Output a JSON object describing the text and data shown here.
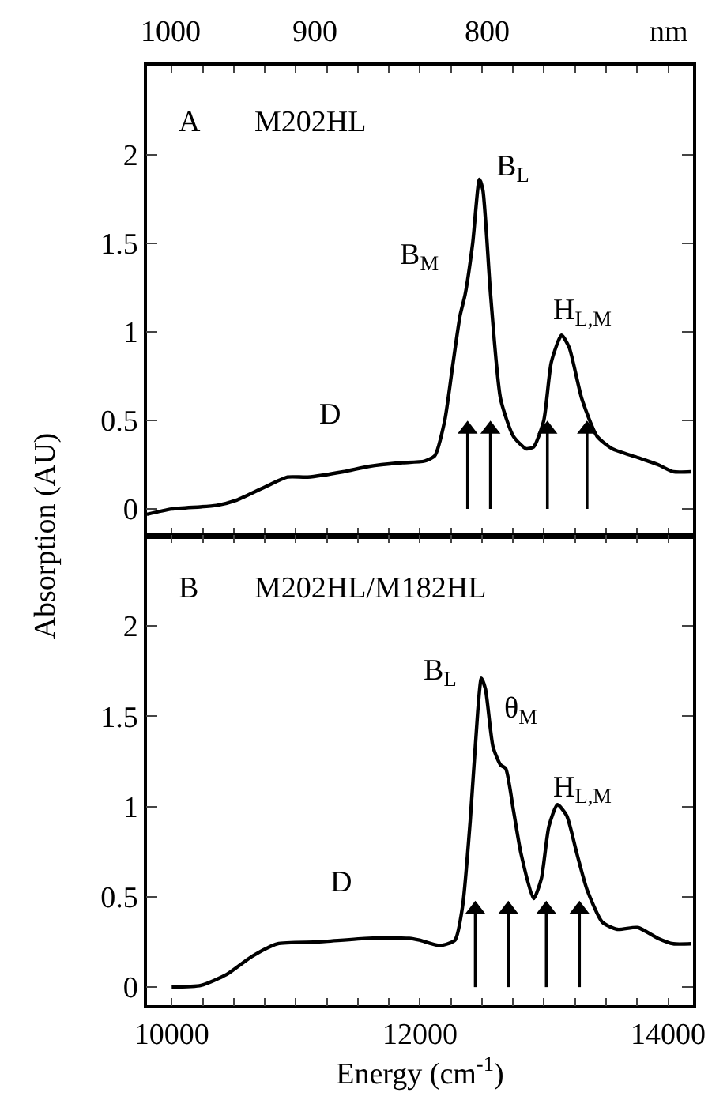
{
  "chart_data": [
    {
      "type": "line",
      "xlim": [
        9800,
        14200
      ],
      "ylim": [
        -0.15,
        2.5
      ],
      "yticks": [
        0,
        0.5,
        1,
        1.5,
        2
      ],
      "tick_labels": "y",
      "marker": "none",
      "line_style": "solid",
      "xticks": [
        {
          "value": 10000,
          "label": null
        },
        {
          "value": 10250,
          "label": null
        },
        {
          "value": 10500,
          "label": null
        },
        {
          "value": 10750,
          "label": null
        },
        {
          "value": 11000,
          "label": null
        },
        {
          "value": 11250,
          "label": null
        },
        {
          "value": 11500,
          "label": null
        },
        {
          "value": 11750,
          "label": null
        },
        {
          "value": 12000,
          "label": null
        },
        {
          "value": 12250,
          "label": null
        },
        {
          "value": 12500,
          "label": null
        },
        {
          "value": 12750,
          "label": null
        },
        {
          "value": 13000,
          "label": null
        },
        {
          "value": 13250,
          "label": null
        },
        {
          "value": 13500,
          "label": null
        },
        {
          "value": 13750,
          "label": null
        },
        {
          "value": 14000,
          "label": null
        }
      ],
      "ylabel": "Absorption (AU)",
      "x": [
        9800,
        10000,
        10360,
        10524,
        10769,
        10933,
        11096,
        11382,
        11587,
        11832,
        12037,
        12119,
        12200,
        12262,
        12323,
        12364,
        12425,
        12479,
        12507,
        12569,
        12650,
        12753,
        12855,
        12916,
        12998,
        13059,
        13141,
        13203,
        13305,
        13427,
        13550,
        13754,
        13918,
        14041,
        14184
      ],
      "series": [
        {
          "color": "#000000",
          "values": [
            -0.03,
            0.0,
            0.02,
            0.05,
            0.13,
            0.18,
            0.18,
            0.21,
            0.24,
            0.26,
            0.27,
            0.3,
            0.5,
            0.8,
            1.09,
            1.21,
            1.5,
            1.86,
            1.8,
            1.21,
            0.62,
            0.41,
            0.34,
            0.35,
            0.5,
            0.83,
            0.98,
            0.91,
            0.62,
            0.41,
            0.34,
            0.29,
            0.25,
            0.21,
            0.21
          ]
        },
        {
          "type": "lollipop",
          "marker": "triangle",
          "color": "#000000",
          "x": [
            12384,
            12568,
            13027,
            13346
          ],
          "values": [
            0.45,
            0.45,
            0.45,
            0.45
          ]
        }
      ],
      "annotations": [
        "A",
        "M202HL",
        "B$_{M}$",
        "B$_{L}$",
        "H$_{L,M}$",
        "D",
        "1000",
        "900",
        "800",
        "nm"
      ]
    },
    {
      "type": "line",
      "xlim": [
        9800,
        14200
      ],
      "ylim": [
        -0.1,
        2.5
      ],
      "yticks": [
        0,
        0.5,
        1,
        1.5,
        2
      ],
      "marker": "none",
      "line_style": "solid",
      "xticks": [
        10000,
        {
          "value": 10250,
          "label": null
        },
        {
          "value": 10500,
          "label": null
        },
        {
          "value": 10750,
          "label": null
        },
        {
          "value": 11000,
          "label": null
        },
        {
          "value": 11250,
          "label": null
        },
        {
          "value": 11500,
          "label": null
        },
        {
          "value": 11750,
          "label": null
        },
        12000,
        {
          "value": 12250,
          "label": null
        },
        {
          "value": 12500,
          "label": null
        },
        {
          "value": 12750,
          "label": null
        },
        {
          "value": 13000,
          "label": null
        },
        {
          "value": 13250,
          "label": null
        },
        {
          "value": 13500,
          "label": null
        },
        {
          "value": 13750,
          "label": null
        },
        14000
      ],
      "xlabel": "Energy (cm$^{-1}$)",
      "x": [
        10000,
        10237,
        10442,
        10646,
        10851,
        11178,
        11587,
        11914,
        11996,
        12160,
        12282,
        12344,
        12405,
        12466,
        12495,
        12528,
        12589,
        12650,
        12691,
        12753,
        12814,
        12916,
        12978,
        13039,
        13108,
        13182,
        13264,
        13346,
        13469,
        13591,
        13755,
        13918,
        14041,
        14184
      ],
      "series": [
        {
          "color": "#000000",
          "values": [
            0,
            0.01,
            0.07,
            0.17,
            0.24,
            0.25,
            0.27,
            0.27,
            0.26,
            0.23,
            0.26,
            0.45,
            0.92,
            1.53,
            1.71,
            1.65,
            1.33,
            1.23,
            1.21,
            0.98,
            0.74,
            0.49,
            0.6,
            0.89,
            1.01,
            0.95,
            0.74,
            0.54,
            0.36,
            0.32,
            0.33,
            0.27,
            0.24,
            0.24
          ]
        },
        {
          "type": "lollipop",
          "marker": "triangle",
          "color": "#000000",
          "x": [
            12446,
            12712,
            13018,
            13285
          ],
          "values": [
            0.43,
            0.43,
            0.43,
            0.43
          ]
        }
      ],
      "annotations": [
        "B",
        "M202HL/M182HL",
        "B$_{L}$",
        "θ$_{M}$",
        "H$_{L,M}$",
        "D"
      ]
    }
  ]
}
